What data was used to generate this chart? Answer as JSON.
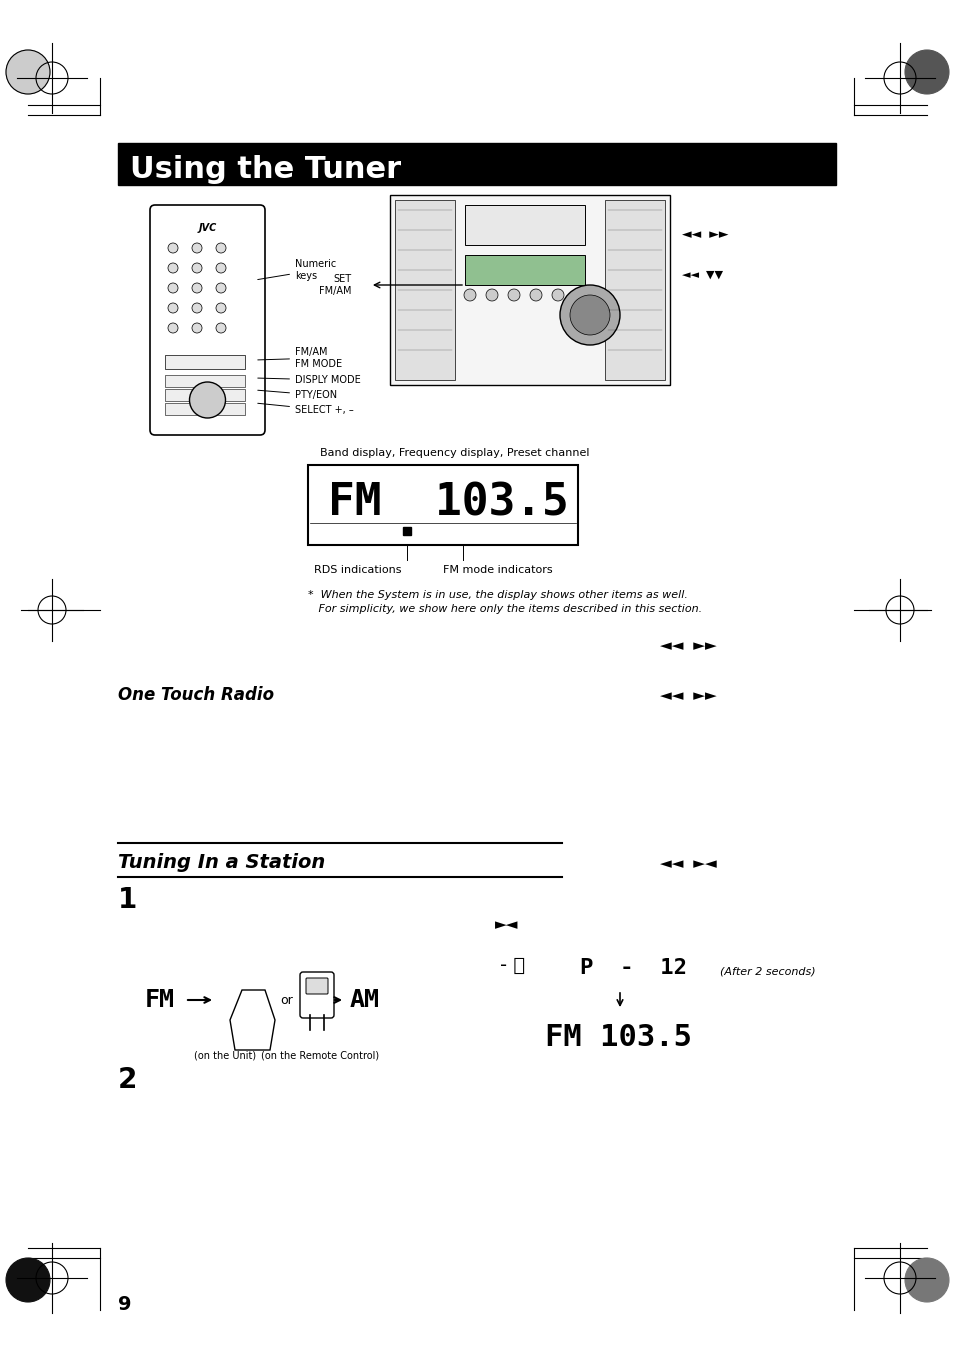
{
  "title": "Using the Tuner",
  "title_bg": "#000000",
  "title_fg": "#ffffff",
  "page_bg": "#ffffff",
  "page_number": "9",
  "section2_title": "Tuning In a Station",
  "one_touch_radio": "One Touch Radio",
  "step1": "1",
  "step2": "2",
  "band_display_label": "Band display, Frequency display, Preset channel",
  "fm_display": "FM  103.5",
  "rds_label": "RDS indications",
  "fm_mode_label": "FM mode indicators",
  "footnote": "*  When the System is in use, the display shows other items as well.\n   For simplicity, we show here only the items described in this section.",
  "on_unit_label": "(on the Unit)",
  "on_remote_label": "(on the Remote Control)",
  "after_2s_label": "(After 2 seconds)",
  "p12_display": "P  -  12",
  "fm1035_display": "FM 103.5",
  "numeric_keys": "Numeric\nkeys",
  "fmam_label": "FM/AM\nFM MODE",
  "display_mode": "DISPLY MODE",
  "pty_eon": "PTY/EON",
  "select": "SELECT +, –",
  "set_fmam": "SET\nFM/AM"
}
